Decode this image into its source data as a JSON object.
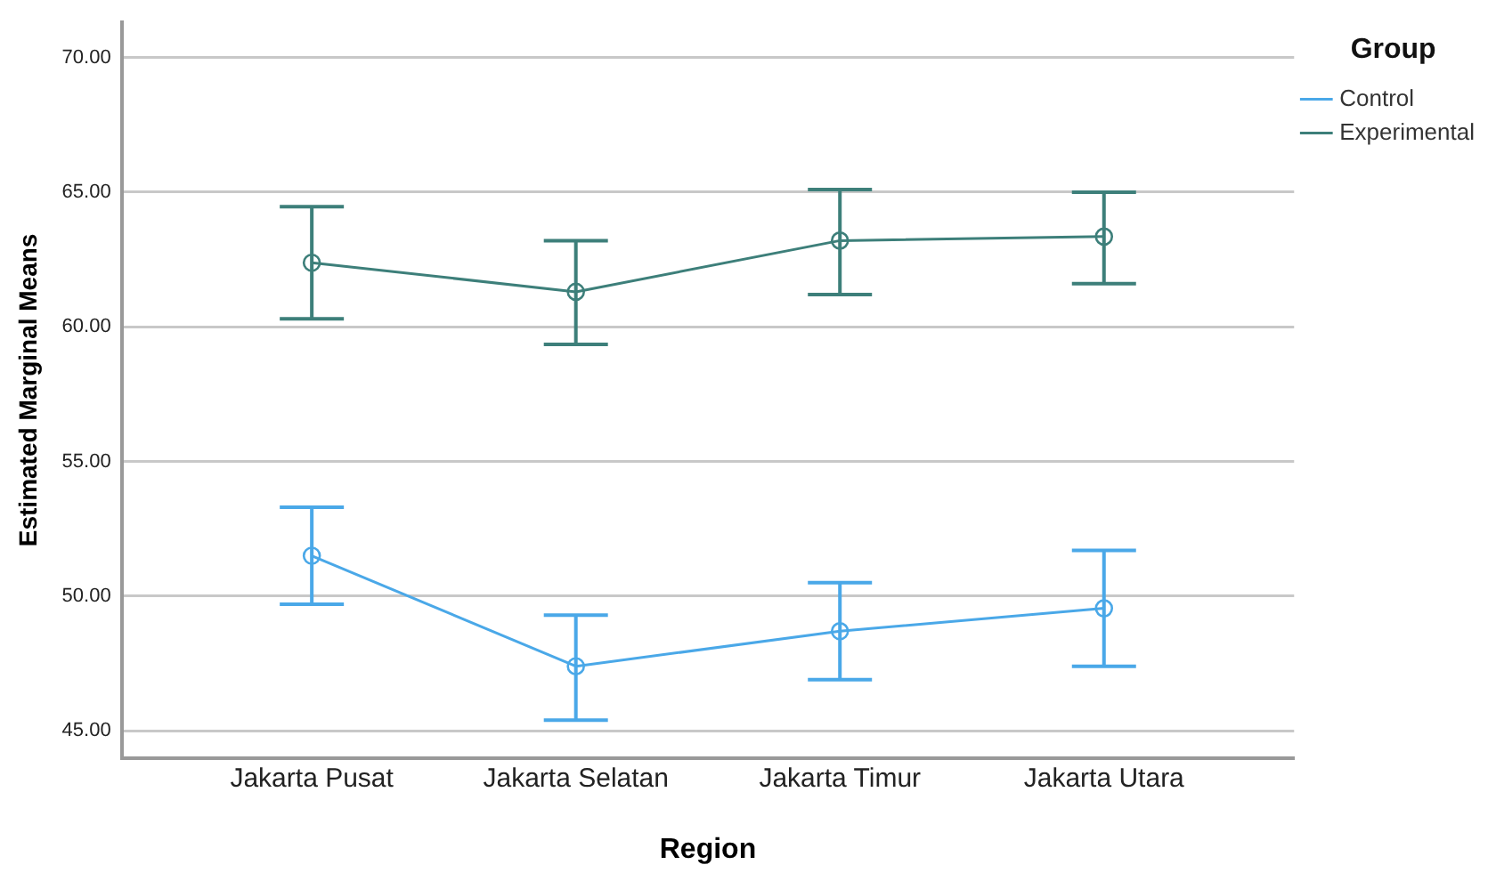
{
  "chart_data": {
    "type": "line",
    "xlabel": "Region",
    "ylabel": "Estimated Marginal Means",
    "legend_title": "Group",
    "legend": "top right",
    "grid": "y",
    "marker": "circle",
    "categories": [
      "Jakarta Pusat",
      "Jakarta Selatan",
      "Jakarta Timur",
      "Jakarta Utara"
    ],
    "ylim": [
      44,
      71.3
    ],
    "yticks": [
      {
        "value": 45,
        "label": "45.00"
      },
      {
        "value": 50,
        "label": "50.00"
      },
      {
        "value": 55,
        "label": "55.00"
      },
      {
        "value": 60,
        "label": "60.00"
      },
      {
        "value": 65,
        "label": "65.00"
      },
      {
        "value": 70,
        "label": "70.00"
      }
    ],
    "series": [
      {
        "name": "Control",
        "color": "#4aa8e8",
        "values": [
          51.5,
          47.4,
          48.7,
          49.55
        ],
        "errors": [
          [
            49.7,
            53.3
          ],
          [
            45.4,
            49.3
          ],
          [
            46.9,
            50.5
          ],
          [
            47.4,
            51.7
          ]
        ]
      },
      {
        "name": "Experimental",
        "color": "#3d7f7a",
        "values": [
          62.38,
          61.3,
          63.2,
          63.35
        ],
        "errors": [
          [
            60.3,
            64.46
          ],
          [
            59.35,
            63.2
          ],
          [
            61.2,
            65.1
          ],
          [
            61.6,
            65.0
          ]
        ]
      }
    ]
  }
}
